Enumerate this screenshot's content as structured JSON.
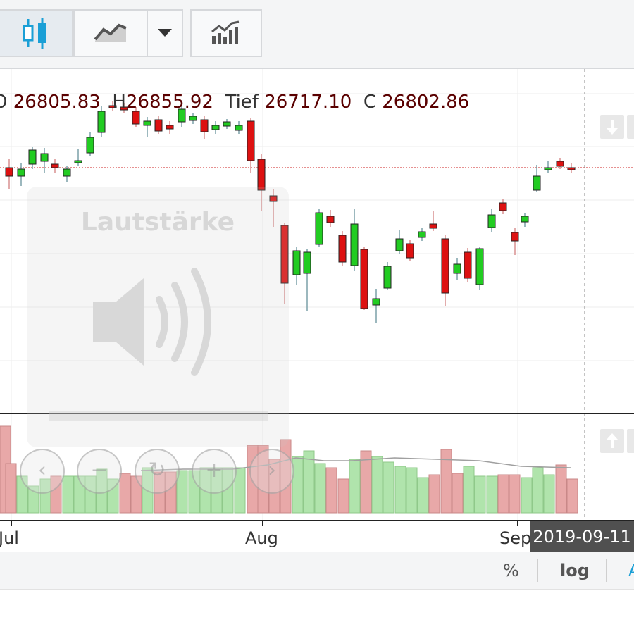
{
  "toolbar": {
    "buttons": [
      {
        "name": "candlestick-chart-icon",
        "active": true
      },
      {
        "name": "area-chart-icon"
      },
      {
        "name": "chevron-down-icon"
      },
      {
        "name": "bar-chart-icon"
      }
    ]
  },
  "ohlc": {
    "open_label": "O",
    "open_value": "26805.83",
    "high_label": "H",
    "high_value": "26855.92",
    "low_label": "Tief",
    "low_value": "26717.10",
    "close_label": "C",
    "close_value": "26802.86"
  },
  "overlay": {
    "title": "Lautstärke",
    "icon": "speaker-icon"
  },
  "nav_buttons": [
    {
      "name": "scroll-left-button",
      "glyph": "‹"
    },
    {
      "name": "zoom-out-button",
      "glyph": "−"
    },
    {
      "name": "reset-button",
      "glyph": "↻"
    },
    {
      "name": "zoom-in-button",
      "glyph": "+"
    },
    {
      "name": "scroll-right-button",
      "glyph": "›"
    }
  ],
  "x_axis": {
    "labels": [
      "Jul",
      "Aug",
      "Sep"
    ]
  },
  "crosshair_date": "2019-09-11",
  "footer": {
    "percent_label": "%",
    "log_label": "log",
    "auto_label": "A"
  },
  "colors": {
    "up": "#22cc22",
    "down": "#dd1111",
    "volume_up": "#b0e4ac",
    "volume_down": "#e8a8a8"
  }
}
